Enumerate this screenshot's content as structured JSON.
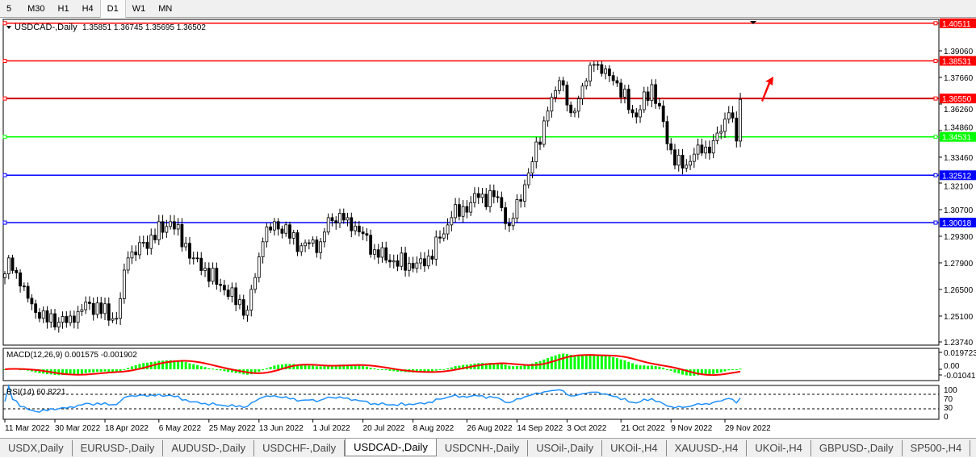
{
  "toolbar": {
    "timeframes": [
      {
        "label": "5"
      },
      {
        "label": "M30"
      },
      {
        "label": "H1"
      },
      {
        "label": "H4"
      },
      {
        "label": "D1",
        "active": true
      },
      {
        "label": "W1"
      },
      {
        "label": "MN"
      }
    ]
  },
  "chart_header": {
    "symbol": "USDCAD-,Daily",
    "ohlc": "1.35851 1.36745 1.35695 1.36502"
  },
  "macd_header": "MACD(12,26,9) 0.001575 -0.001902",
  "rsi_header": "RSI(14) 60.8221",
  "chart_data": {
    "type": "candlestick",
    "symbol": "USDCAD-",
    "timeframe": "Daily",
    "price_ticks": [
      "1.39060",
      "1.37660",
      "1.36260",
      "1.34860",
      "1.33460",
      "1.32100",
      "1.30700",
      "1.29300",
      "1.27900",
      "1.26500",
      "1.25100",
      "1.23740"
    ],
    "price_range": [
      1.2374,
      1.4051
    ],
    "close_path": [
      [
        "2022-03-11",
        1.2732
      ],
      [
        "2022-03-14",
        1.2816
      ],
      [
        "2022-03-17",
        1.2668
      ],
      [
        "2022-03-24",
        1.2498
      ],
      [
        "2022-04-06",
        1.2477
      ],
      [
        "2022-04-11",
        1.2583
      ],
      [
        "2022-04-21",
        1.2498
      ],
      [
        "2022-04-26",
        1.2816
      ],
      [
        "2022-05-11",
        1.3007
      ],
      [
        "2022-05-19",
        1.2816
      ],
      [
        "2022-05-31",
        1.2647
      ],
      [
        "2022-06-08",
        1.2541
      ],
      [
        "2022-06-14",
        1.2901
      ],
      [
        "2022-06-17",
        1.3007
      ],
      [
        "2022-06-28",
        1.288
      ],
      [
        "2022-07-05",
        1.2901
      ],
      [
        "2022-07-07",
        1.3028
      ],
      [
        "2022-07-14",
        1.3028
      ],
      [
        "2022-07-25",
        1.2859
      ],
      [
        "2022-07-29",
        1.2795
      ],
      [
        "2022-08-11",
        1.2774
      ],
      [
        "2022-08-22",
        1.3028
      ],
      [
        "2022-08-31",
        1.3134
      ],
      [
        "2022-09-07",
        1.3134
      ],
      [
        "2022-09-12",
        1.2986
      ],
      [
        "2022-09-19",
        1.3262
      ],
      [
        "2022-09-23",
        1.3537
      ],
      [
        "2022-09-29",
        1.3749
      ],
      [
        "2022-10-04",
        1.358
      ],
      [
        "2022-10-12",
        1.3834
      ],
      [
        "2022-10-19",
        1.3749
      ],
      [
        "2022-10-27",
        1.3558
      ],
      [
        "2022-11-02",
        1.3728
      ],
      [
        "2022-11-10",
        1.3304
      ],
      [
        "2022-11-15",
        1.3304
      ],
      [
        "2022-11-18",
        1.341
      ],
      [
        "2022-11-23",
        1.3368
      ],
      [
        "2022-11-30",
        1.358
      ],
      [
        "2022-12-02",
        1.3431
      ],
      [
        "2022-12-05",
        1.365
      ]
    ],
    "levels": [
      {
        "price": "1.40511",
        "color": "#ff0000"
      },
      {
        "price": "1.38531",
        "color": "#ff0000"
      },
      {
        "price": "1.36550",
        "color": "#ff0000",
        "bold": true
      },
      {
        "price": "1.34531",
        "color": "#00ff00"
      },
      {
        "price": "1.32512",
        "color": "#0000ff"
      },
      {
        "price": "1.30018",
        "color": "#0000ff"
      }
    ],
    "annotation": {
      "type": "arrow",
      "direction": "up-right",
      "color": "#ff0000"
    },
    "macd": {
      "params": "12,26,9",
      "ticks": [
        "0.019723",
        "0.00",
        "-0.01041"
      ],
      "histogram_color": "#00ff00",
      "signal_color": "#ff0000"
    },
    "rsi": {
      "period": 14,
      "ticks": [
        "100",
        "70",
        "30",
        "0"
      ],
      "levels": [
        70,
        30
      ],
      "line_color": "#1e90ff"
    },
    "time_ticks": [
      [
        "2022-03-11",
        "11 Mar 2022"
      ],
      [
        "2022-03-30",
        "30 Mar 2022"
      ],
      [
        "2022-04-18",
        "18 Apr 2022"
      ],
      [
        "2022-05-06",
        "6 May 2022"
      ],
      [
        "2022-05-25",
        "25 May 2022"
      ],
      [
        "2022-06-13",
        "13 Jun 2022"
      ],
      [
        "2022-07-01",
        "1 Jul 2022"
      ],
      [
        "2022-07-20",
        "20 Jul 2022"
      ],
      [
        "2022-08-08",
        "8 Aug 2022"
      ],
      [
        "2022-08-26",
        "26 Aug 2022"
      ],
      [
        "2022-09-14",
        "14 Sep 2022"
      ],
      [
        "2022-10-03",
        "3 Oct 2022"
      ],
      [
        "2022-10-21",
        "21 Oct 2022"
      ],
      [
        "2022-11-09",
        "9 Nov 2022"
      ],
      [
        "2022-11-29",
        "29 Nov 2022"
      ]
    ]
  },
  "tabs": [
    {
      "label": "USDX,Daily"
    },
    {
      "label": "EURUSD-,Daily"
    },
    {
      "label": "AUDUSD-,Daily"
    },
    {
      "label": "USDCHF-,Daily"
    },
    {
      "label": "USDCAD-,Daily",
      "active": true
    },
    {
      "label": "USDCNH-,Daily"
    },
    {
      "label": "USOil-,Daily"
    },
    {
      "label": "UKOil-,H4"
    },
    {
      "label": "XAUUSD-,H4"
    },
    {
      "label": "UKOil-,H4"
    },
    {
      "label": "GBPUSD-,Daily"
    },
    {
      "label": "SP500-,H4"
    }
  ],
  "tab_arrows": {
    "left": "◄",
    "right": "►"
  }
}
